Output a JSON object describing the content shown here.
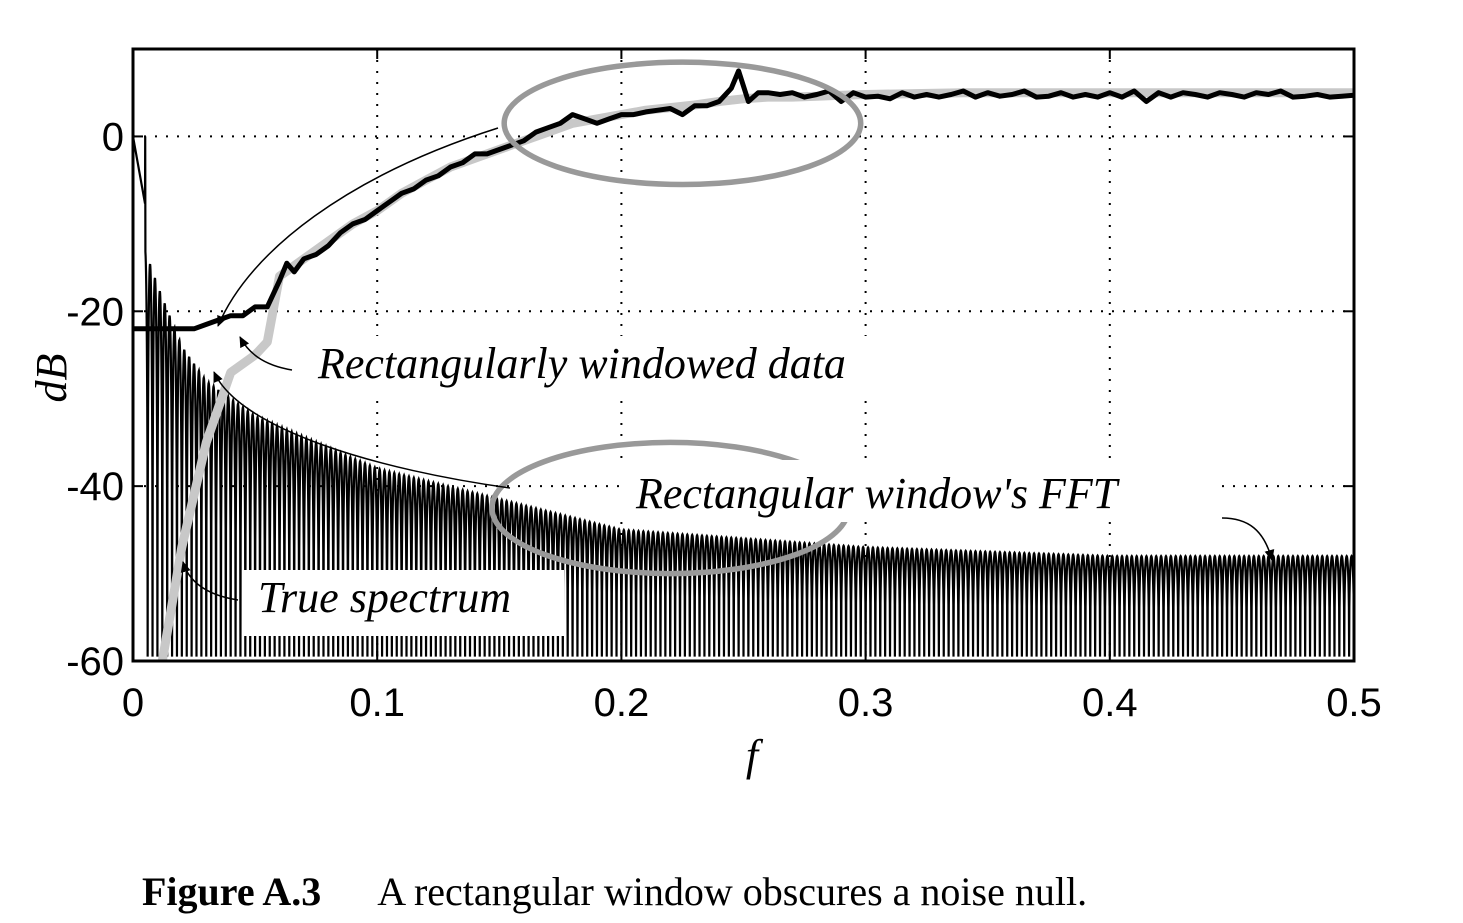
{
  "chart_data": {
    "type": "line",
    "xlabel": "f",
    "ylabel": "dB",
    "xlim": [
      0,
      0.5
    ],
    "ylim": [
      -60,
      10
    ],
    "grid": true,
    "x_ticks": [
      0,
      0.1,
      0.2,
      0.3,
      0.4,
      0.5
    ],
    "x_tick_labels": [
      "0",
      "0.1",
      "0.2",
      "0.3",
      "0.4",
      "0.5"
    ],
    "y_ticks": [
      -60,
      -40,
      -20,
      0
    ],
    "y_tick_labels": [
      "-60",
      "-40",
      "-20",
      "0"
    ],
    "series": [
      {
        "name": "True spectrum",
        "color": "#c8c8c8",
        "x": [
          0.012,
          0.02,
          0.03,
          0.04,
          0.05,
          0.055,
          0.06,
          0.07,
          0.08,
          0.09,
          0.1,
          0.11,
          0.12,
          0.13,
          0.14,
          0.15,
          0.16,
          0.17,
          0.18,
          0.19,
          0.2,
          0.21,
          0.22,
          0.23,
          0.24,
          0.25,
          0.26,
          0.27,
          0.28,
          0.29,
          0.3,
          0.32,
          0.34,
          0.36,
          0.38,
          0.4,
          0.42,
          0.44,
          0.46,
          0.48,
          0.5
        ],
        "y": [
          -60,
          -47,
          -35,
          -27,
          -25,
          -23.5,
          -16,
          -14,
          -12,
          -10,
          -8.5,
          -6.5,
          -5,
          -3.5,
          -2.5,
          -1.5,
          -0.5,
          0.5,
          1.5,
          2,
          2.5,
          3,
          3.3,
          3.6,
          4,
          4.3,
          4.5,
          4.5,
          4.6,
          4.7,
          4.8,
          4.9,
          5,
          5,
          5,
          5,
          5,
          5,
          5,
          5,
          5
        ]
      },
      {
        "name": "Rectangularly windowed data",
        "color": "#000000",
        "x": [
          0,
          0.01,
          0.02,
          0.025,
          0.03,
          0.035,
          0.04,
          0.045,
          0.05,
          0.055,
          0.06,
          0.063,
          0.066,
          0.07,
          0.075,
          0.08,
          0.085,
          0.09,
          0.095,
          0.1,
          0.105,
          0.11,
          0.115,
          0.12,
          0.125,
          0.13,
          0.135,
          0.14,
          0.145,
          0.15,
          0.155,
          0.16,
          0.165,
          0.17,
          0.175,
          0.18,
          0.185,
          0.19,
          0.195,
          0.2,
          0.205,
          0.21,
          0.215,
          0.22,
          0.225,
          0.23,
          0.235,
          0.24,
          0.245,
          0.248,
          0.252,
          0.256,
          0.26,
          0.265,
          0.27,
          0.275,
          0.28,
          0.285,
          0.29,
          0.295,
          0.3,
          0.305,
          0.31,
          0.315,
          0.32,
          0.325,
          0.33,
          0.335,
          0.34,
          0.345,
          0.35,
          0.355,
          0.36,
          0.365,
          0.37,
          0.375,
          0.38,
          0.385,
          0.39,
          0.395,
          0.4,
          0.405,
          0.41,
          0.415,
          0.42,
          0.425,
          0.43,
          0.435,
          0.44,
          0.445,
          0.45,
          0.455,
          0.46,
          0.465,
          0.47,
          0.475,
          0.48,
          0.485,
          0.49,
          0.495,
          0.5
        ],
        "y": [
          -22,
          -22,
          -22,
          -22,
          -21.5,
          -21,
          -20.5,
          -20.5,
          -19.5,
          -19.5,
          -16.5,
          -14.5,
          -15.5,
          -14,
          -13.5,
          -12.5,
          -11,
          -10,
          -9.5,
          -8.5,
          -7.5,
          -6.5,
          -6,
          -5,
          -4.5,
          -3.5,
          -3,
          -2,
          -2,
          -1.5,
          -1,
          -0.5,
          0.5,
          1,
          1.5,
          2.5,
          2,
          1.5,
          2,
          2.5,
          2.5,
          2.8,
          3,
          3.2,
          2.5,
          3.5,
          3.5,
          4,
          5.5,
          7.5,
          4,
          5,
          5,
          4.8,
          5,
          4.5,
          4.8,
          5.2,
          4,
          5,
          4.5,
          4.6,
          4.3,
          5,
          4.5,
          4.8,
          4.5,
          4.8,
          5.2,
          4.5,
          5,
          4.6,
          4.8,
          5.2,
          4.5,
          4.6,
          5,
          4.5,
          4.8,
          4.5,
          5,
          4.5,
          5.2,
          4,
          5,
          4.5,
          5,
          4.8,
          4.5,
          5,
          4.8,
          4.5,
          5,
          4.8,
          5.2,
          4.5,
          4.6,
          4.8,
          4.5,
          4.6,
          4.7
        ]
      },
      {
        "name": "Rectangular window's FFT",
        "color": "#000000",
        "form": "oscillating sidelobes with nulls at -60 dB",
        "peak_db": 0,
        "sidelobe_envelope": {
          "x": [
            0.005,
            0.01,
            0.02,
            0.03,
            0.05,
            0.1,
            0.2,
            0.3,
            0.4,
            0.5
          ],
          "y": [
            -13,
            -17,
            -24,
            -28,
            -32,
            -38,
            -45,
            -47,
            -48,
            -48
          ]
        },
        "cycles_over_range": 125
      }
    ],
    "annotations": [
      {
        "text": "Rectangularly windowed data",
        "points_to": "Rectangularly windowed data"
      },
      {
        "text": "Rectangular window's FFT",
        "points_to": "Rectangular window's FFT"
      },
      {
        "text": "True spectrum",
        "points_to": "True spectrum"
      }
    ],
    "highlight_ellipses": [
      {
        "cx": 0.225,
        "cy": 1.5,
        "rx": 0.073,
        "ry": 7,
        "color": "#999999"
      },
      {
        "cx": 0.22,
        "cy": -42.5,
        "rx": 0.073,
        "ry": 7.5,
        "color": "#999999"
      }
    ]
  },
  "caption": {
    "figure_number": "Figure A.3",
    "text": "A rectangular window obscures a noise null."
  }
}
